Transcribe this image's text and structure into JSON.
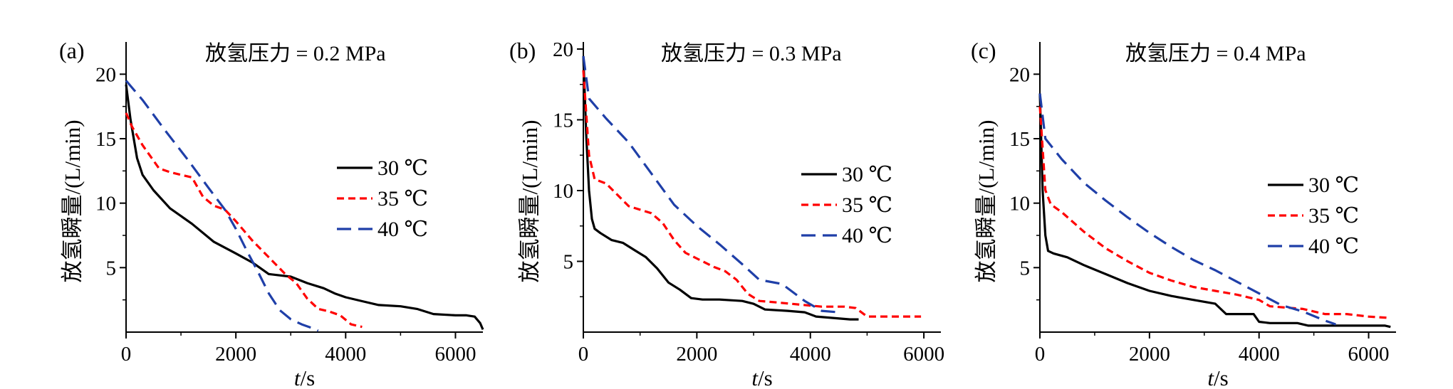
{
  "figure": {
    "series_style": [
      {
        "color": "#000000",
        "dash": "solid"
      },
      {
        "color": "#ff0000",
        "dash": "dash"
      },
      {
        "color": "#1f3fa8",
        "dash": "longdash"
      }
    ]
  },
  "chart_data": [
    {
      "type": "line",
      "panel": "(a)",
      "title": "放氢压力 = 0.2 MPa",
      "xlabel": "t/s",
      "xlabel_italic": "t",
      "xlabel_rest": "/s",
      "ylabel": "放氢瞬量/(L/min)",
      "xlim": [
        0,
        6500
      ],
      "ylim": [
        0,
        22.5
      ],
      "xticks": [
        0,
        2000,
        4000,
        6000
      ],
      "yticks": [
        5,
        10,
        15,
        20
      ],
      "grid": false,
      "legend_position": "center-right",
      "series": [
        {
          "name": "30 ℃",
          "x": [
            0,
            80,
            200,
            300,
            500,
            800,
            1200,
            1600,
            2000,
            2300,
            2600,
            3000,
            3300,
            3600,
            3800,
            4000,
            4300,
            4600,
            5000,
            5300,
            5600,
            6000,
            6200,
            6350,
            6450,
            6500
          ],
          "y": [
            19.2,
            16.5,
            13.5,
            12.2,
            11.0,
            9.6,
            8.4,
            7.0,
            6.1,
            5.4,
            4.5,
            4.3,
            3.8,
            3.4,
            3.0,
            2.7,
            2.4,
            2.1,
            2.0,
            1.8,
            1.4,
            1.3,
            1.3,
            1.2,
            0.7,
            0.2
          ]
        },
        {
          "name": "35 ℃",
          "x": [
            0,
            100,
            300,
            600,
            800,
            1000,
            1200,
            1400,
            1600,
            1800,
            2000,
            2300,
            2600,
            2900,
            3100,
            3300,
            3500,
            3700,
            3900,
            4100,
            4300
          ],
          "y": [
            17.0,
            16.0,
            14.5,
            12.7,
            12.4,
            12.2,
            12.0,
            10.5,
            9.8,
            9.5,
            8.6,
            7.1,
            5.8,
            4.5,
            3.8,
            2.6,
            1.8,
            1.6,
            1.3,
            0.6,
            0.4
          ]
        },
        {
          "name": "40 ℃",
          "x": [
            0,
            300,
            700,
            1100,
            1500,
            1800,
            2000,
            2200,
            2400,
            2600,
            2800,
            3000,
            3200,
            3400,
            3500
          ],
          "y": [
            19.5,
            18.0,
            15.7,
            13.5,
            11.2,
            9.5,
            8.0,
            6.3,
            4.7,
            3.0,
            1.7,
            1.0,
            0.6,
            0.3,
            0.1
          ]
        }
      ]
    },
    {
      "type": "line",
      "panel": "(b)",
      "title": "放氢压力 = 0.3 MPa",
      "xlabel": "t/s",
      "xlabel_italic": "t",
      "xlabel_rest": "/s",
      "ylabel": "放氢瞬量/(L/min)",
      "xlim": [
        0,
        6300
      ],
      "ylim": [
        0,
        20.5
      ],
      "xticks": [
        0,
        2000,
        4000,
        6000
      ],
      "yticks": [
        5,
        10,
        15,
        20
      ],
      "grid": false,
      "legend_position": "center-right",
      "series": [
        {
          "name": "30 ℃",
          "x": [
            0,
            50,
            100,
            150,
            200,
            300,
            500,
            700,
            900,
            1100,
            1300,
            1500,
            1700,
            1900,
            2100,
            2400,
            2800,
            3000,
            3200,
            3600,
            3900,
            4100,
            4400,
            4700,
            4850
          ],
          "y": [
            19.5,
            14.0,
            10.0,
            8.0,
            7.3,
            7.0,
            6.5,
            6.3,
            5.8,
            5.3,
            4.5,
            3.5,
            3.0,
            2.4,
            2.3,
            2.3,
            2.2,
            2.0,
            1.6,
            1.5,
            1.4,
            1.1,
            1.0,
            0.9,
            0.9
          ]
        },
        {
          "name": "35 ℃",
          "x": [
            0,
            100,
            200,
            400,
            600,
            800,
            1200,
            1400,
            1600,
            1800,
            2000,
            2300,
            2500,
            2700,
            2900,
            3100,
            3400,
            4200,
            4600,
            4800,
            5000,
            5300,
            5950
          ],
          "y": [
            18.5,
            12.5,
            10.8,
            10.5,
            9.7,
            8.9,
            8.4,
            7.7,
            6.5,
            5.6,
            5.2,
            4.6,
            4.3,
            3.7,
            2.7,
            2.2,
            2.1,
            1.8,
            1.8,
            1.7,
            1.1,
            1.1,
            1.1
          ]
        },
        {
          "name": "40 ℃",
          "x": [
            0,
            100,
            400,
            800,
            1200,
            1600,
            2000,
            2400,
            2800,
            3100,
            3500,
            3900,
            4200,
            4500
          ],
          "y": [
            19.5,
            16.5,
            15.1,
            13.4,
            11.2,
            9.0,
            7.5,
            6.2,
            4.8,
            3.7,
            3.4,
            2.2,
            1.5,
            1.4
          ]
        }
      ]
    },
    {
      "type": "line",
      "panel": "(c)",
      "title": "放氢压力 = 0.4 MPa",
      "xlabel": "t/s",
      "xlabel_italic": "t",
      "xlabel_rest": "/s",
      "ylabel": "放氢瞬量/(L/min)",
      "xlim": [
        0,
        6500
      ],
      "ylim": [
        0,
        22.5
      ],
      "xticks": [
        0,
        2000,
        4000,
        6000
      ],
      "yticks": [
        5,
        10,
        15,
        20
      ],
      "grid": false,
      "legend_position": "center-right",
      "series": [
        {
          "name": "30 ℃",
          "x": [
            0,
            50,
            100,
            150,
            250,
            500,
            800,
            1200,
            1600,
            2000,
            2400,
            2800,
            3200,
            3400,
            3900,
            4000,
            4200,
            4700,
            4900,
            6300,
            6400
          ],
          "y": [
            18.5,
            11.0,
            7.5,
            6.3,
            6.1,
            5.8,
            5.2,
            4.5,
            3.8,
            3.2,
            2.8,
            2.5,
            2.2,
            1.4,
            1.4,
            0.8,
            0.7,
            0.7,
            0.5,
            0.5,
            0.4
          ]
        },
        {
          "name": "35 ℃",
          "x": [
            0,
            100,
            200,
            400,
            800,
            1200,
            1600,
            2000,
            2400,
            2800,
            3200,
            3600,
            4000,
            4200,
            4800,
            5200,
            5600,
            6000,
            6400
          ],
          "y": [
            17.5,
            11.0,
            9.9,
            9.3,
            7.8,
            6.5,
            5.5,
            4.6,
            4.0,
            3.5,
            3.2,
            2.9,
            2.5,
            2.0,
            1.8,
            1.4,
            1.4,
            1.2,
            1.1
          ]
        },
        {
          "name": "40 ℃",
          "x": [
            0,
            100,
            400,
            800,
            1200,
            1600,
            2000,
            2400,
            2800,
            3200,
            3600,
            4000,
            4400,
            4800,
            5200,
            5400
          ],
          "y": [
            18.5,
            15.0,
            13.4,
            11.6,
            10.2,
            8.9,
            7.7,
            6.6,
            5.6,
            4.8,
            3.9,
            3.0,
            2.1,
            1.6,
            0.9,
            0.6
          ]
        }
      ]
    }
  ]
}
